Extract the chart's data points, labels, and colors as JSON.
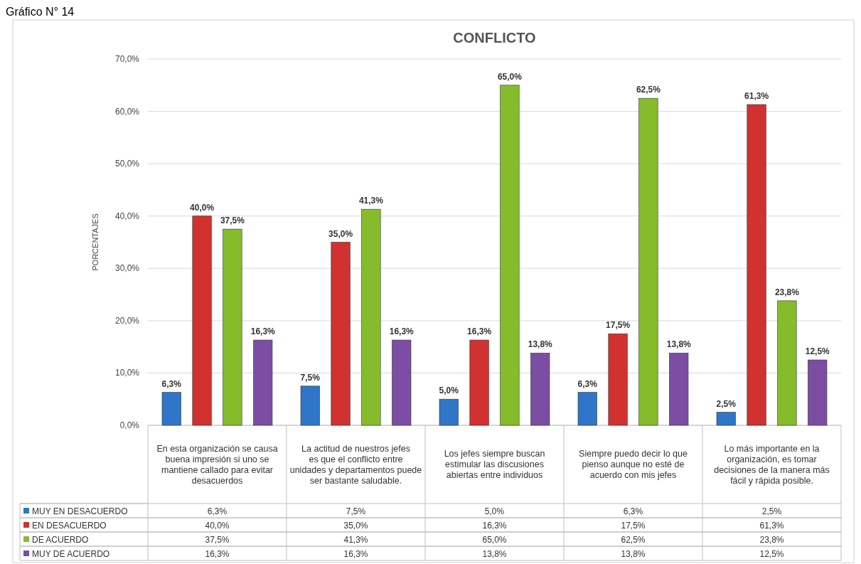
{
  "chart_data": {
    "type": "bar",
    "title": "CONFLICTO",
    "ylabel": "PORCENTAJES",
    "annotations": [
      "Gráfico N° 14"
    ],
    "categories": [
      "En esta organización se causa buena impresión si uno se mantiene callado para evitar desacuerdos",
      "La actitud de nuestros jefes es que el conflicto entre unidades y departamentos puede ser bastante saludable.",
      "Los jefes siempre buscan estimular las discusiones abiertas entre individuos",
      "Siempre puedo decir lo que pienso aunque no esté de acuerdo con mis jefes",
      "Lo más importante en la organización, es tomar decisiones de la manera más fácil y rápida posible."
    ],
    "series": [
      {
        "name": "MUY EN DESACUERDO",
        "color": "#2f75c8",
        "values": [
          6.3,
          7.5,
          5.0,
          6.3,
          2.5
        ],
        "value_labels": [
          "6,3%",
          "7,5%",
          "5,0%",
          "6,3%",
          "2,5%"
        ]
      },
      {
        "name": "EN DESACUERDO",
        "color": "#d1312f",
        "values": [
          40.0,
          35.0,
          16.3,
          17.5,
          61.3
        ],
        "value_labels": [
          "40,0%",
          "35,0%",
          "16,3%",
          "17,5%",
          "61,3%"
        ]
      },
      {
        "name": "DE ACUERDO",
        "color": "#86bc2c",
        "values": [
          37.5,
          41.3,
          65.0,
          62.5,
          23.8
        ],
        "value_labels": [
          "37,5%",
          "41,3%",
          "65,0%",
          "62,5%",
          "23,8%"
        ]
      },
      {
        "name": "MUY DE ACUERDO",
        "color": "#7b4ea3",
        "values": [
          16.3,
          16.3,
          13.8,
          13.8,
          12.5
        ],
        "value_labels": [
          "16,3%",
          "16,3%",
          "13,8%",
          "13,8%",
          "12,5%"
        ]
      }
    ],
    "ylim": [
      0,
      70
    ],
    "yticks": [
      {
        "value": 0,
        "label": "0,0%"
      },
      {
        "value": 10,
        "label": "10,0%"
      },
      {
        "value": 20,
        "label": "20,0%"
      },
      {
        "value": 30,
        "label": "30,0%"
      },
      {
        "value": 40,
        "label": "40,0%"
      },
      {
        "value": 50,
        "label": "50,0%"
      },
      {
        "value": 60,
        "label": "60,0%"
      },
      {
        "value": 70,
        "label": "70,0%"
      }
    ],
    "grid": "y",
    "legend": "bottom"
  }
}
